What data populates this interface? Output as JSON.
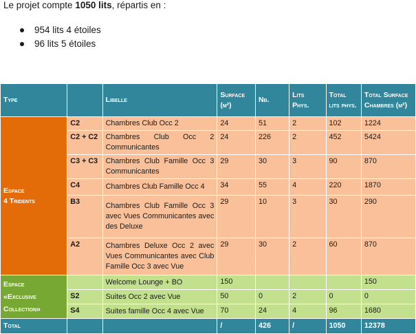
{
  "intro": {
    "prefix": "Le projet compte ",
    "bold": "1050 lits",
    "suffix": ", répartis en :"
  },
  "beds": [
    "954 lits 4 étoiles",
    "96 lits 5 étoiles"
  ],
  "table": {
    "headers": {
      "type": "Type",
      "code": "",
      "libelle": "Libelle",
      "surface": "Surface (m²)",
      "nb": "Nb.",
      "lits": "Lits Phys.",
      "total_lits": "Total lits phys.",
      "total_surface": "Total Surface Chambres (m²)"
    },
    "category_4": {
      "label_line1": "Espace",
      "label_line2": "4 Tridents",
      "rows": [
        {
          "code": "C2",
          "libelle": "Chambres Club Occ 2",
          "surface": "24",
          "nb": "51",
          "lits": "2",
          "total_lits": "102",
          "total_surface": "1224"
        },
        {
          "code": "C2 + C2",
          "libelle": "Chambres Club Occ 2 Communicantes",
          "surface": "24",
          "nb": "226",
          "lits": "2",
          "total_lits": "452",
          "total_surface": "5424"
        },
        {
          "code": "C3 + C3",
          "libelle": "Chambres Club Famille Occ 3 Communicantes",
          "surface": "29",
          "nb": "30",
          "lits": "3",
          "total_lits": "90",
          "total_surface": "870"
        },
        {
          "code": "C4",
          "libelle": "Chambres Club Famille Occ 4",
          "surface": "34",
          "nb": "55",
          "lits": "4",
          "total_lits": "220",
          "total_surface": "1870"
        },
        {
          "code": "B3",
          "libelle": "Chambres Club Famille Occ 3 avec Vues Communicantes avec des Deluxe",
          "surface": "29",
          "nb": "10",
          "lits": "3",
          "total_lits": "30",
          "total_surface": "290"
        },
        {
          "code": "A2",
          "libelle": "Chambres Deluxe Occ 2 avec Vues Communicantes avec Club Famille Occ 3 avec Vue",
          "surface": "29",
          "nb": "30",
          "lits": "2",
          "total_lits": "60",
          "total_surface": "870"
        }
      ]
    },
    "category_x": {
      "label_line1": "Espace",
      "label_line2": "«Exclusive",
      "label_line3": "Collection»",
      "rows": [
        {
          "code": "",
          "libelle": "Welcome Lounge + BO",
          "surface": "150",
          "nb": "",
          "lits": "",
          "total_lits": "",
          "total_surface": "150"
        },
        {
          "code": "S2",
          "libelle": "Suites Occ 2 avec Vue",
          "surface": "50",
          "nb": "0",
          "lits": "2",
          "total_lits": "0",
          "total_surface": "0"
        },
        {
          "code": "S4",
          "libelle": "Suites famille Occ 4 avec Vue",
          "surface": "70",
          "nb": "24",
          "lits": "4",
          "total_lits": "96",
          "total_surface": "1680"
        }
      ]
    },
    "total": {
      "label": "Total",
      "code": "",
      "libelle": "",
      "surface": "/",
      "nb": "426",
      "lits": "/",
      "total_lits": "1050",
      "total_surface": "12378"
    }
  },
  "colors": {
    "header": "#31869b",
    "category_4_label": "#e36c09",
    "category_4_rows": "#fac09a",
    "category_x_label": "#77a833",
    "category_x_rows": "#c3e08e"
  }
}
